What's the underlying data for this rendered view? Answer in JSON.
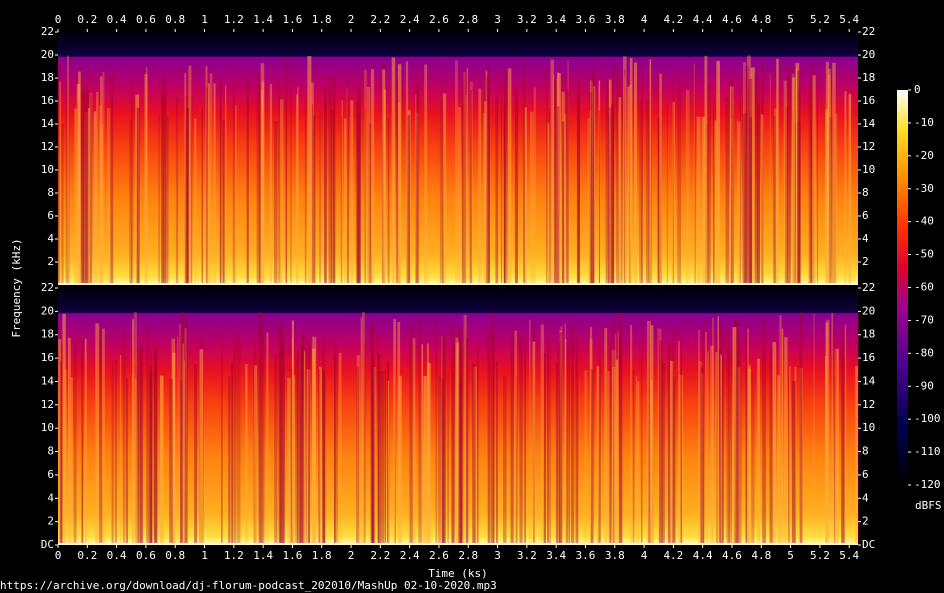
{
  "chart_data": [
    {
      "type": "spectrogram",
      "ylabel": "Frequency (kHz)",
      "xlim": [
        0,
        5.46
      ],
      "xticks": [
        0,
        0.2,
        0.4,
        0.6,
        0.8,
        1,
        1.2,
        1.4,
        1.6,
        1.8,
        2,
        2.2,
        2.4,
        2.6,
        2.8,
        3,
        3.2,
        3.4,
        3.6,
        3.8,
        4,
        4.2,
        4.4,
        4.6,
        4.8,
        5,
        5.2,
        5.4
      ],
      "ylim": [
        0,
        22
      ],
      "yticks": [
        2,
        4,
        6,
        8,
        10,
        12,
        14,
        16,
        18,
        20,
        22
      ],
      "colorbar": {
        "label": "dBFS",
        "lim": [
          -120,
          0
        ],
        "ticks": [
          0,
          -10,
          -20,
          -30,
          -40,
          -50,
          -60,
          -70,
          -80,
          -90,
          -100,
          -110,
          -120
        ]
      }
    },
    {
      "type": "spectrogram",
      "xlabel": "Time (ks)",
      "xlim": [
        0,
        5.46
      ],
      "xticks": [
        0,
        0.2,
        0.4,
        0.6,
        0.8,
        1,
        1.2,
        1.4,
        1.6,
        1.8,
        2,
        2.2,
        2.4,
        2.6,
        2.8,
        3,
        3.2,
        3.4,
        3.6,
        3.8,
        4,
        4.2,
        4.4,
        4.6,
        4.8,
        5,
        5.2,
        5.4
      ],
      "ylim": [
        0,
        22
      ],
      "yticks": [
        {
          "value": 0,
          "label": "DC"
        },
        2,
        4,
        6,
        8,
        10,
        12,
        14,
        16,
        18,
        20,
        22
      ]
    }
  ],
  "source": "https://archive.org/download/dj-florum-podcast_202010/MashUp 02-10-2020.mp3"
}
